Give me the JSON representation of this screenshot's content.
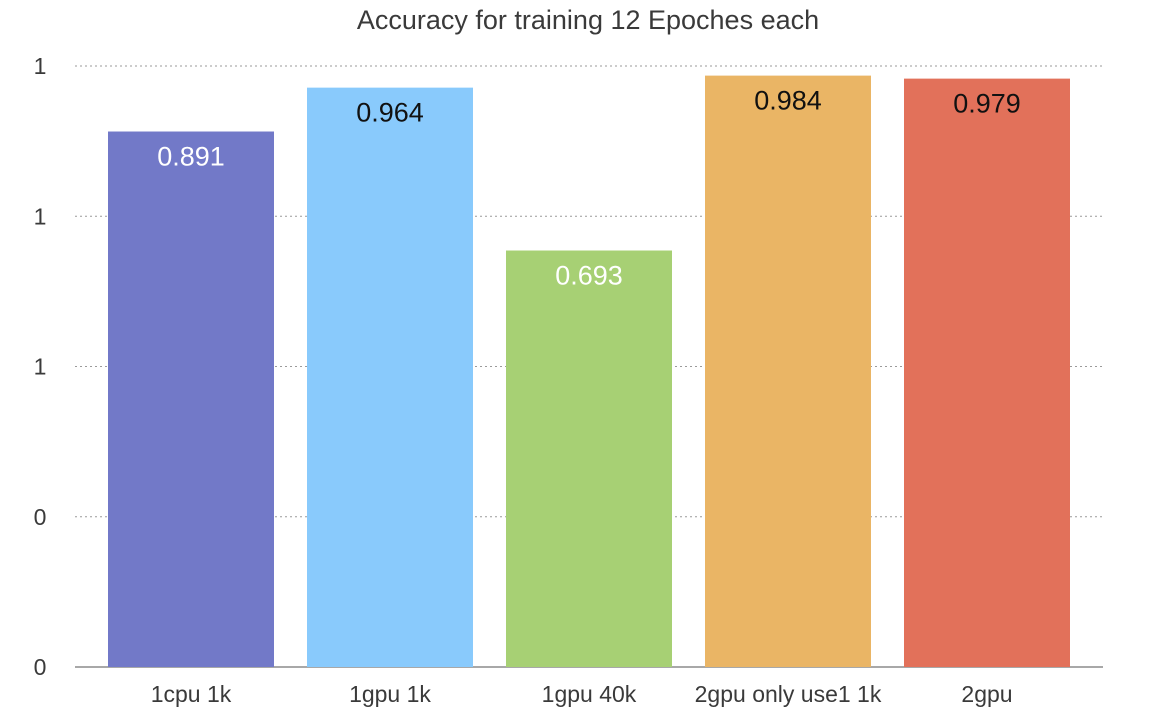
{
  "chart_data": {
    "type": "bar",
    "title": "Accuracy for training 12 Epoches each",
    "xlabel": "",
    "ylabel": "",
    "categories": [
      "1cpu 1k",
      "1gpu 1k",
      "1gpu 40k",
      "2gpu only use1 1k",
      "2gpu"
    ],
    "values": [
      0.891,
      0.964,
      0.693,
      0.984,
      0.979
    ],
    "data_labels": [
      "0.891",
      "0.964",
      "0.693",
      "0.984",
      "0.979"
    ],
    "colors": [
      "#7279c8",
      "#89cafc",
      "#a7d074",
      "#eab565",
      "#e2715a"
    ],
    "label_colors": [
      "#ffffff",
      "#111111",
      "#ffffff",
      "#111111",
      "#111111"
    ],
    "ylim": [
      0,
      1
    ],
    "y_ticks": [
      0,
      0.25,
      0.5,
      0.75,
      1
    ],
    "y_tick_labels": [
      "0",
      "0",
      "1",
      "1",
      "1"
    ],
    "grid": true,
    "legend": "none"
  }
}
